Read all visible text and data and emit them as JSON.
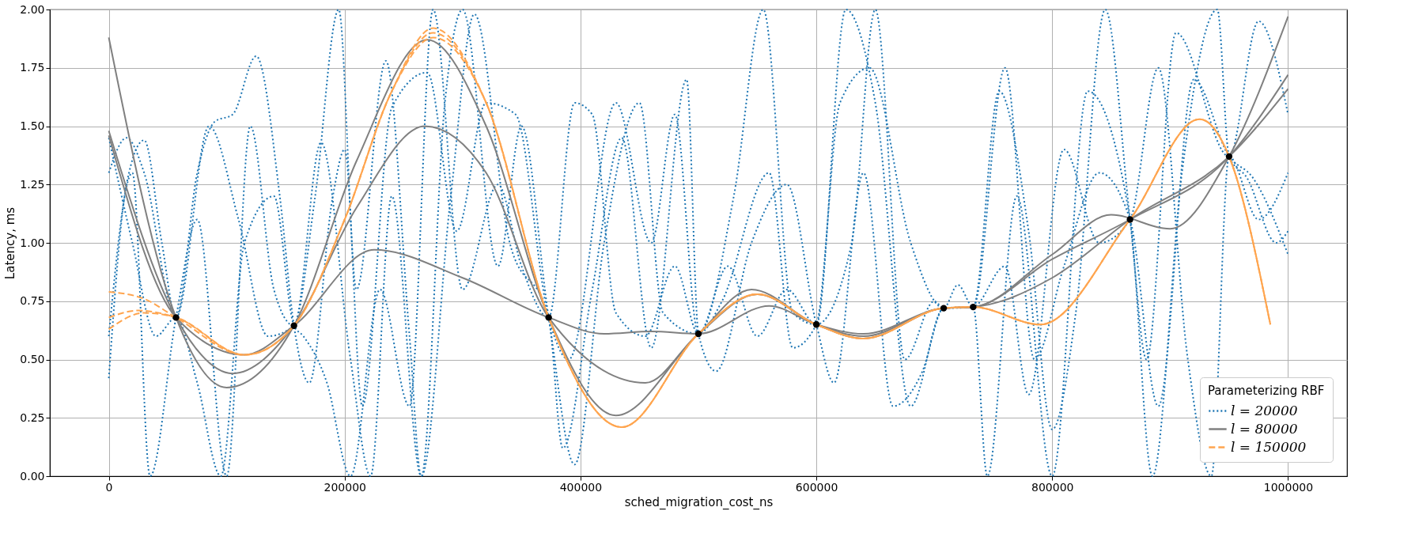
{
  "chart_data": {
    "type": "line",
    "xlabel": "sched_migration_cost_ns",
    "ylabel": "Latency, ms",
    "legend_title": "Parameterizing RBF",
    "legend": "bottom right",
    "grid": true,
    "marker": "none",
    "xlim": [
      -50000,
      1050000
    ],
    "xticks": [
      0,
      200000,
      400000,
      600000,
      800000,
      1000000
    ],
    "ylim": [
      0,
      2
    ],
    "yticks": [
      {
        "value": 0,
        "label": "0.00"
      },
      {
        "value": 0.25,
        "label": "0.25"
      },
      {
        "value": 0.5,
        "label": "0.50"
      },
      {
        "value": 0.75,
        "label": "0.75"
      },
      {
        "value": 1,
        "label": "1.00"
      },
      {
        "value": 1.25,
        "label": "1.25"
      },
      {
        "value": 1.5,
        "label": "1.50"
      },
      {
        "value": 1.75,
        "label": "1.75"
      },
      {
        "value": 2,
        "label": "2.00"
      }
    ],
    "series": [
      {
        "name": "l = 20000",
        "line_style": "dotted",
        "color": "#1f77b4",
        "x": [
          0,
          15000,
          30000,
          45000,
          57000,
          75000,
          90000,
          105000,
          125000,
          145000,
          157000,
          170000,
          190000,
          200000,
          215000,
          240000,
          270000,
          295000,
          320000,
          345000,
          373000,
          390000,
          430000,
          460000,
          480000,
          500000,
          520000,
          560000,
          580000,
          600000,
          620000,
          645000,
          680000,
          708000,
          720000,
          733000,
          760000,
          785000,
          810000,
          840000,
          866000,
          890000,
          920000,
          950000,
          970000,
          1000000
        ],
        "values": [
          0.42,
          1.25,
          1.44,
          1.0,
          0.68,
          1.3,
          1.52,
          1.55,
          1.8,
          1.2,
          0.645,
          0.4,
          1.2,
          1.4,
          0.3,
          1.58,
          1.73,
          1.05,
          1.6,
          1.55,
          0.68,
          0.5,
          1.6,
          1.0,
          1.55,
          0.61,
          0.75,
          1.3,
          0.55,
          0.65,
          1.6,
          1.75,
          1.0,
          0.72,
          0.82,
          0.725,
          1.75,
          0.5,
          0.9,
          1.3,
          1.1,
          0.3,
          1.7,
          1.37,
          1.28,
          0.95
        ]
      },
      {
        "line_style": "dotted",
        "color": "#1f77b4",
        "x": [
          0,
          20000,
          35000,
          57000,
          75000,
          100000,
          120000,
          140000,
          157000,
          180000,
          205000,
          222000,
          240000,
          265000,
          285000,
          300000,
          330000,
          350000,
          373000,
          395000,
          420000,
          450000,
          470000,
          500000,
          530000,
          555000,
          580000,
          600000,
          625000,
          650000,
          680000,
          708000,
          733000,
          745000,
          770000,
          800000,
          830000,
          866000,
          885000,
          910000,
          940000,
          950000,
          965000,
          990000,
          1000000
        ],
        "values": [
          0.6,
          1.3,
          0.0,
          0.68,
          1.1,
          0.0,
          1.5,
          0.8,
          0.645,
          1.43,
          0.5,
          0.0,
          1.2,
          0.0,
          1.6,
          2.0,
          0.9,
          1.5,
          0.68,
          0.05,
          1.0,
          1.6,
          0.7,
          0.61,
          1.2,
          2.0,
          0.7,
          0.65,
          2.0,
          1.6,
          0.3,
          0.72,
          0.725,
          0.0,
          1.2,
          0.0,
          1.65,
          1.1,
          0.0,
          1.3,
          2.0,
          1.37,
          1.28,
          1.0,
          1.05
        ]
      },
      {
        "line_style": "dotted",
        "color": "#1f77b4",
        "x": [
          0,
          15000,
          30000,
          57000,
          85000,
          110000,
          135000,
          157000,
          175000,
          195000,
          210000,
          235000,
          255000,
          265000,
          290000,
          310000,
          340000,
          373000,
          385000,
          410000,
          435000,
          460000,
          490000,
          500000,
          515000,
          545000,
          575000,
          600000,
          615000,
          640000,
          665000,
          690000,
          708000,
          733000,
          755000,
          780000,
          800000,
          820000,
          845000,
          866000,
          880000,
          905000,
          950000,
          975000,
          1000000
        ],
        "values": [
          1.3,
          1.45,
          1.3,
          0.68,
          1.5,
          1.1,
          0.6,
          0.645,
          1.2,
          2.0,
          0.8,
          1.78,
          0.6,
          0.0,
          1.2,
          1.98,
          1.0,
          0.68,
          0.12,
          0.8,
          1.45,
          0.55,
          1.7,
          0.61,
          0.45,
          1.0,
          1.25,
          0.65,
          0.4,
          1.3,
          0.3,
          0.45,
          0.72,
          0.725,
          1.65,
          1.05,
          0.2,
          0.7,
          2.0,
          1.1,
          0.5,
          1.9,
          1.37,
          1.95,
          1.55
        ]
      },
      {
        "line_style": "dotted",
        "color": "#1f77b4",
        "x": [
          0,
          20000,
          40000,
          57000,
          75000,
          95000,
          115000,
          140000,
          157000,
          165000,
          185000,
          205000,
          230000,
          255000,
          275000,
          300000,
          330000,
          350000,
          373000,
          395000,
          410000,
          430000,
          455000,
          480000,
          500000,
          525000,
          550000,
          575000,
          600000,
          630000,
          650000,
          675000,
          700000,
          708000,
          733000,
          760000,
          780000,
          810000,
          840000,
          866000,
          890000,
          915000,
          935000,
          950000,
          975000,
          1000000
        ],
        "values": [
          1.45,
          1.0,
          0.6,
          0.68,
          0.4,
          0.0,
          1.0,
          1.2,
          0.645,
          0.6,
          0.4,
          0.0,
          0.8,
          0.3,
          2.0,
          0.8,
          1.25,
          0.9,
          0.68,
          1.6,
          1.55,
          0.7,
          0.6,
          0.9,
          0.61,
          0.9,
          0.6,
          0.8,
          0.65,
          1.0,
          2.0,
          0.5,
          0.75,
          0.72,
          0.725,
          0.9,
          0.35,
          1.4,
          1.0,
          1.1,
          1.75,
          0.5,
          0.0,
          1.37,
          1.1,
          1.3
        ]
      },
      {
        "name": "l = 80000",
        "line_style": "solid",
        "color": "#808080",
        "x": [
          0,
          57000,
          100000,
          157000,
          210000,
          270000,
          320000,
          373000,
          430000,
          500000,
          545000,
          600000,
          640000,
          708000,
          733000,
          800000,
          850000,
          900000,
          950000,
          1000000
        ],
        "values": [
          1.88,
          0.68,
          0.38,
          0.645,
          1.35,
          1.87,
          1.5,
          0.68,
          0.26,
          0.61,
          0.8,
          0.65,
          0.59,
          0.72,
          0.725,
          0.95,
          1.12,
          1.06,
          1.37,
          1.97
        ]
      },
      {
        "line_style": "solid",
        "color": "#808080",
        "x": [
          0,
          57000,
          105000,
          157000,
          210000,
          268000,
          320000,
          373000,
          455000,
          500000,
          550000,
          600000,
          640000,
          708000,
          733000,
          800000,
          866000,
          950000,
          1000000
        ],
        "values": [
          1.48,
          0.68,
          0.44,
          0.645,
          1.15,
          1.5,
          1.3,
          0.68,
          0.4,
          0.61,
          0.78,
          0.65,
          0.6,
          0.72,
          0.725,
          0.93,
          1.1,
          1.37,
          1.72
        ]
      },
      {
        "line_style": "solid",
        "color": "#808080",
        "x": [
          0,
          57000,
          115000,
          157000,
          225000,
          300000,
          373000,
          420000,
          460000,
          500000,
          560000,
          600000,
          640000,
          708000,
          733000,
          800000,
          866000,
          950000,
          1000000
        ],
        "values": [
          1.46,
          0.68,
          0.52,
          0.645,
          0.97,
          0.85,
          0.68,
          0.61,
          0.62,
          0.61,
          0.73,
          0.65,
          0.61,
          0.72,
          0.725,
          0.85,
          1.1,
          1.37,
          1.66
        ]
      },
      {
        "name": "l = 150000",
        "line_style": "dashed",
        "color": "#ffa54f",
        "x": [
          0,
          30000,
          57000,
          115000,
          157000,
          200000,
          240000,
          275000,
          320000,
          373000,
          435000,
          500000,
          550000,
          600000,
          640000,
          708000,
          733000,
          790000,
          866000,
          925000,
          950000,
          985000
        ],
        "values": [
          0.79,
          0.76,
          0.68,
          0.52,
          0.645,
          1.1,
          1.65,
          1.92,
          1.6,
          0.68,
          0.21,
          0.61,
          0.78,
          0.65,
          0.59,
          0.72,
          0.725,
          0.65,
          1.1,
          1.53,
          1.37,
          0.65
        ]
      },
      {
        "line_style": "dashed",
        "color": "#ffa54f",
        "x": [
          0,
          25000,
          57000,
          115000,
          157000,
          200000,
          240000,
          275000,
          320000,
          373000,
          435000,
          500000,
          550000,
          600000,
          640000,
          708000,
          733000,
          790000,
          866000,
          925000,
          950000,
          985000
        ],
        "values": [
          0.68,
          0.71,
          0.68,
          0.52,
          0.645,
          1.1,
          1.65,
          1.9,
          1.6,
          0.68,
          0.21,
          0.61,
          0.78,
          0.65,
          0.59,
          0.72,
          0.725,
          0.65,
          1.1,
          1.53,
          1.37,
          0.65
        ]
      },
      {
        "line_style": "dashed",
        "color": "#ffa54f",
        "x": [
          0,
          30000,
          57000,
          115000,
          157000,
          200000,
          240000,
          275000,
          320000,
          373000,
          435000,
          500000,
          550000,
          600000,
          640000,
          708000,
          733000,
          790000,
          866000,
          925000,
          950000,
          985000
        ],
        "values": [
          0.63,
          0.7,
          0.68,
          0.52,
          0.645,
          1.1,
          1.65,
          1.88,
          1.6,
          0.68,
          0.21,
          0.61,
          0.78,
          0.65,
          0.59,
          0.72,
          0.725,
          0.65,
          1.1,
          1.53,
          1.37,
          0.65
        ]
      },
      {
        "type": "scatter",
        "marker": "circle",
        "color": "#000000",
        "x": [
          57000,
          157000,
          373000,
          500000,
          600000,
          708000,
          733000,
          866000,
          950000
        ],
        "values": [
          0.68,
          0.645,
          0.68,
          0.61,
          0.65,
          0.72,
          0.725,
          1.1,
          1.37
        ]
      }
    ]
  }
}
